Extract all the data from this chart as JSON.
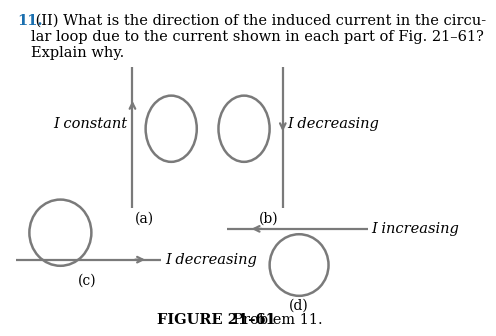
{
  "title_num": "11.",
  "title_text": " (II) What is the direction of the induced current in the circu-\nlar loop due to the current shown in each part of Fig. 21–61?\nExplain why.",
  "figure_label": "FIGURE 21–61",
  "figure_sublabel": "  Problem 11.",
  "bg_color": "#ffffff",
  "wire_color": "#7a7a7a",
  "loop_color": "#7a7a7a",
  "text_color": "#000000",
  "label_a": "(a)",
  "label_b": "(b)",
  "label_c": "(c)",
  "label_d": "(d)",
  "text_a": "I constant",
  "text_b": "I decreasing",
  "text_c": "I decreasing",
  "text_d": "I increasing",
  "wire_lw": 1.6,
  "loop_lw": 1.8,
  "title_fontsize": 10.5,
  "label_fontsize": 10.0,
  "annot_fontsize": 10.5
}
